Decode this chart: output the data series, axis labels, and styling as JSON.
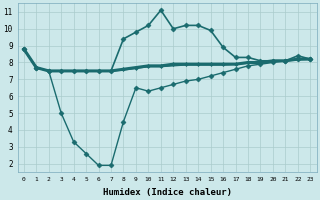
{
  "xlabel": "Humidex (Indice chaleur)",
  "x_ticks": [
    0,
    1,
    2,
    3,
    4,
    5,
    6,
    7,
    8,
    9,
    10,
    11,
    12,
    13,
    14,
    15,
    16,
    17,
    18,
    19,
    20,
    21,
    22,
    23
  ],
  "ylim": [
    1.5,
    11.5
  ],
  "xlim": [
    -0.5,
    23.5
  ],
  "bg_color": "#cce8ea",
  "grid_color": "#aacccc",
  "line_color": "#1a6b6e",
  "series": [
    {
      "x": [
        0,
        1,
        2,
        3,
        4,
        5,
        6,
        7,
        8,
        9,
        10,
        11,
        12,
        13,
        14,
        15,
        16,
        17,
        18,
        19,
        20,
        21,
        22,
        23
      ],
      "y": [
        8.8,
        7.7,
        7.5,
        7.5,
        7.5,
        7.5,
        7.5,
        7.5,
        9.4,
        9.8,
        10.2,
        11.1,
        10.0,
        10.2,
        10.2,
        9.9,
        8.9,
        8.3,
        8.3,
        8.1,
        8.1,
        8.1,
        8.4,
        8.2
      ],
      "marker": "D",
      "markersize": 2.5,
      "linewidth": 1.2,
      "linestyle": "-"
    },
    {
      "x": [
        0,
        1,
        2,
        3,
        4,
        5,
        6,
        7,
        8,
        9,
        10,
        11,
        12,
        13,
        14,
        15,
        16,
        17,
        18,
        19,
        20,
        21,
        22,
        23
      ],
      "y": [
        8.8,
        7.7,
        7.5,
        7.5,
        7.5,
        7.5,
        7.5,
        7.5,
        7.6,
        7.7,
        7.8,
        7.8,
        7.9,
        7.9,
        7.9,
        7.9,
        7.9,
        7.9,
        8.0,
        8.0,
        8.1,
        8.1,
        8.2,
        8.2
      ],
      "marker": "D",
      "markersize": 2.0,
      "linewidth": 2.2,
      "linestyle": "-"
    },
    {
      "x": [
        0,
        1,
        2,
        3,
        4,
        5,
        6,
        7,
        8,
        9,
        10,
        11,
        12,
        13,
        14,
        15,
        16,
        17,
        18,
        19,
        20,
        21,
        22,
        23
      ],
      "y": [
        8.8,
        7.7,
        7.5,
        7.5,
        7.5,
        7.5,
        7.5,
        7.5,
        7.55,
        7.65,
        7.75,
        7.75,
        7.8,
        7.85,
        7.85,
        7.85,
        7.85,
        7.9,
        7.95,
        7.95,
        8.05,
        8.1,
        8.15,
        8.2
      ],
      "marker": null,
      "markersize": 0,
      "linewidth": 0.9,
      "linestyle": "-"
    },
    {
      "x": [
        0,
        1,
        2,
        3,
        4,
        5,
        6,
        7,
        8,
        9,
        10,
        11,
        12,
        13,
        14,
        15,
        16,
        17,
        18,
        19,
        20,
        21,
        22,
        23
      ],
      "y": [
        8.8,
        7.7,
        7.5,
        5.0,
        3.3,
        2.6,
        1.9,
        1.9,
        4.5,
        6.5,
        6.3,
        6.5,
        6.7,
        6.9,
        7.0,
        7.2,
        7.4,
        7.6,
        7.8,
        7.9,
        8.0,
        8.1,
        8.2,
        8.2
      ],
      "marker": "D",
      "markersize": 2.5,
      "linewidth": 1.0,
      "linestyle": "-"
    }
  ]
}
